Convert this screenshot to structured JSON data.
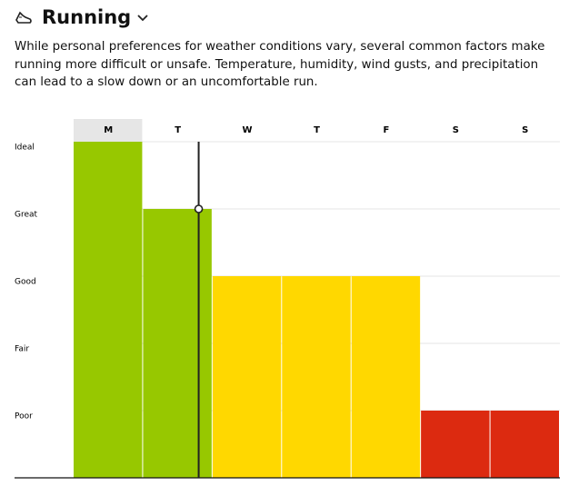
{
  "header": {
    "title": "Running",
    "description": "While personal preferences for weather conditions vary, several common factors make running more difficult or unsafe. Temperature, humidity, wind gusts, and precipitation can lead to a slow down or an uncomfortable run."
  },
  "chart_data": {
    "type": "bar",
    "categories": [
      "M",
      "T",
      "W",
      "T",
      "F",
      "S",
      "S"
    ],
    "values": [
      5,
      4,
      3,
      3,
      3,
      1,
      1
    ],
    "colors": [
      "#97c800",
      "#97c800",
      "#ffd800",
      "#ffd800",
      "#ffd800",
      "#dc2a10",
      "#dc2a10"
    ],
    "ylim": [
      0,
      5
    ],
    "yticks": [
      {
        "value": 1,
        "label": "Poor"
      },
      {
        "value": 2,
        "label": "Fair"
      },
      {
        "value": 3,
        "label": "Good"
      },
      {
        "value": 4,
        "label": "Great"
      },
      {
        "value": 5,
        "label": "Ideal"
      }
    ],
    "grid": true
  }
}
